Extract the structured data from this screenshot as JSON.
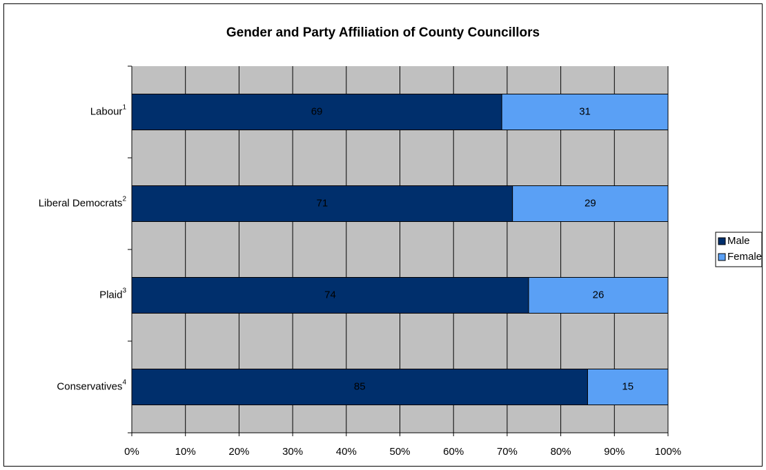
{
  "chart_data": {
    "type": "stacked_barh",
    "title": "Gender and Party Affiliation of County Councillors",
    "categories": [
      "Labour",
      "Liberal Democrats",
      "Plaid",
      "Conservatives"
    ],
    "category_superscripts": [
      "1",
      "2",
      "3",
      "4"
    ],
    "series": [
      {
        "name": "Male",
        "color": "#002f6c",
        "values": [
          69,
          71,
          74,
          85
        ]
      },
      {
        "name": "Female",
        "color": "#5aa0f5",
        "values": [
          31,
          29,
          26,
          15
        ]
      }
    ],
    "xlim": [
      0,
      100
    ],
    "xticks": [
      {
        "value": 0,
        "label": "0%"
      },
      {
        "value": 10,
        "label": "10%"
      },
      {
        "value": 20,
        "label": "20%"
      },
      {
        "value": 30,
        "label": "30%"
      },
      {
        "value": 40,
        "label": "40%"
      },
      {
        "value": 50,
        "label": "50%"
      },
      {
        "value": 60,
        "label": "60%"
      },
      {
        "value": 70,
        "label": "70%"
      },
      {
        "value": 80,
        "label": "80%"
      },
      {
        "value": 90,
        "label": "90%"
      },
      {
        "value": 100,
        "label": "100%"
      }
    ],
    "grid": true,
    "plot_background": "#c0c0c0",
    "legend": "right"
  }
}
